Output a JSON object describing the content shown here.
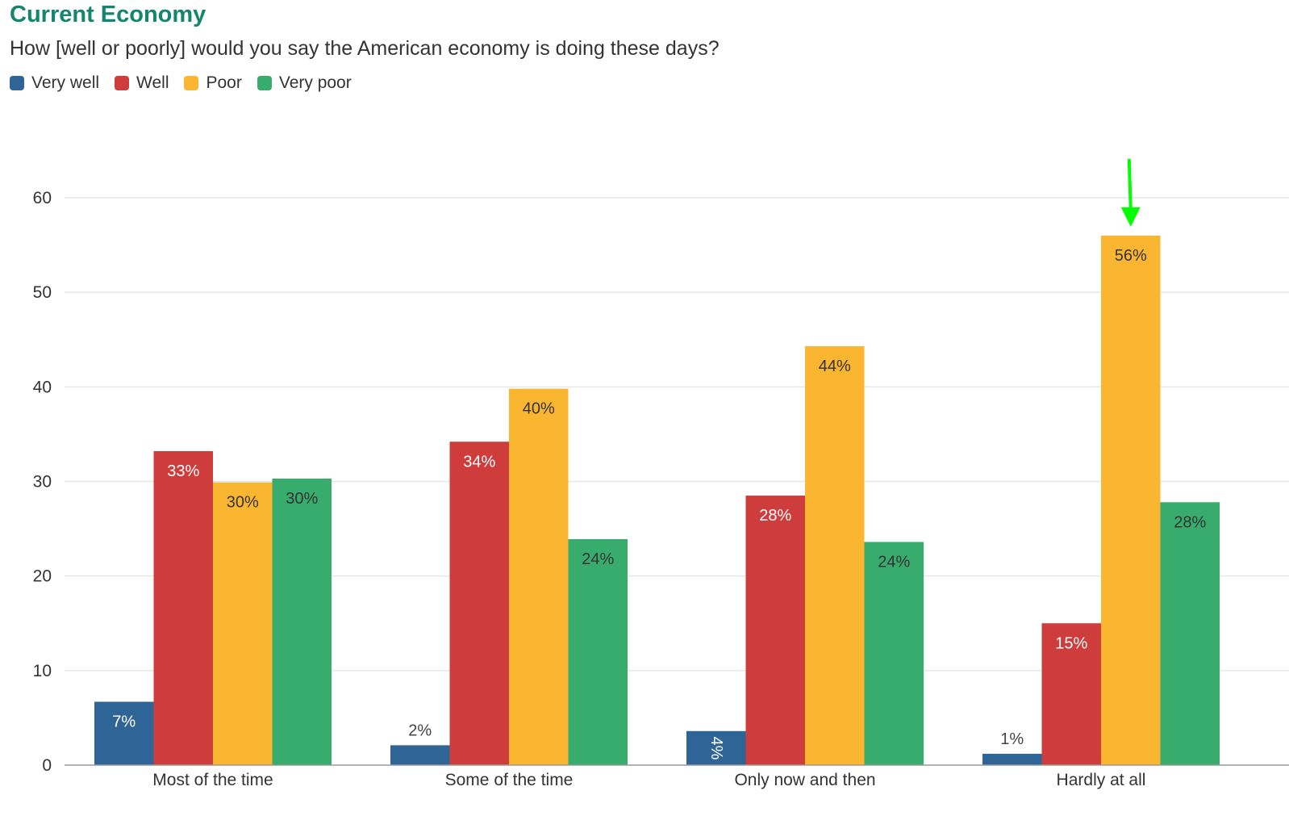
{
  "chart_data": {
    "type": "bar",
    "title": "Current Economy",
    "subtitle": "How [well or poorly] would you say the American economy is doing these days?",
    "categories": [
      "Most of the time",
      "Some of the time",
      "Only now and then",
      "Hardly at all"
    ],
    "series": [
      {
        "name": "Very well",
        "color": "#2f6497",
        "values": [
          6.7,
          2.1,
          3.6,
          1.2
        ],
        "labels": [
          "7%",
          "2%",
          "4%",
          "1%"
        ]
      },
      {
        "name": "Well",
        "color": "#cf3c3c",
        "values": [
          33.2,
          34.2,
          28.5,
          15.0
        ],
        "labels": [
          "33%",
          "34%",
          "28%",
          "15%"
        ]
      },
      {
        "name": "Poor",
        "color": "#fbb631",
        "values": [
          29.9,
          39.8,
          44.3,
          56.0
        ],
        "labels": [
          "30%",
          "40%",
          "44%",
          "56%"
        ]
      },
      {
        "name": "Very poor",
        "color": "#37ac6d",
        "values": [
          30.3,
          23.9,
          23.6,
          27.8
        ],
        "labels": [
          "30%",
          "24%",
          "24%",
          "28%"
        ]
      }
    ],
    "yticks": [
      0,
      10,
      20,
      30,
      40,
      50,
      60
    ],
    "ylim": [
      0,
      60
    ],
    "grid": true,
    "legend_position": "top-left",
    "annotation": {
      "type": "arrow",
      "color": "#00ff00",
      "points_to": "Hardly at all / Poor"
    }
  }
}
